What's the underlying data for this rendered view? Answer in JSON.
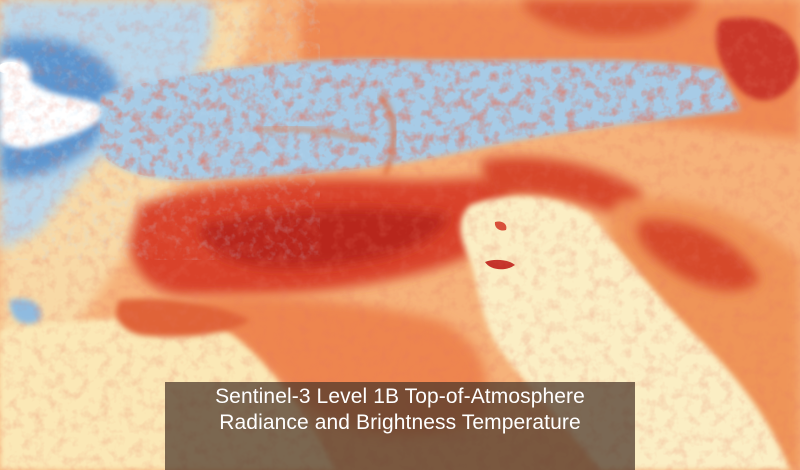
{
  "caption": {
    "line1": "Sentinel-3 Level 1B Top-of-Atmosphere",
    "line2": "Radiance and Brightness Temperature"
  },
  "colormap": {
    "cold": "#2f6fbf",
    "cool": "#a9cfe8",
    "neutral": "#fbefc2",
    "warm": "#f3a25c",
    "hot": "#d93b22",
    "hottest": "#b51e1e",
    "cloud": "#ffffff"
  },
  "features": [
    "alps-cold-band",
    "po-valley-hot-band",
    "adriatic-sea",
    "tyrrhenian-sea",
    "clouds-northwest"
  ]
}
